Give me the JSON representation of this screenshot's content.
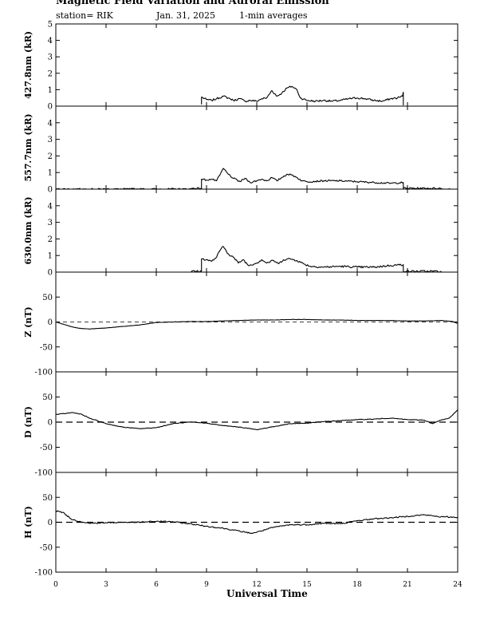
{
  "header": {
    "title": "Magnetic Field Variation and Auroral Emission",
    "station": "station= RIK",
    "date": "Jan. 31, 2025",
    "averaging": "1-min averages"
  },
  "colors": {
    "line": "#000000",
    "background": "#ffffff"
  },
  "chart_data": {
    "type": "line",
    "xlabel": "Universal Time",
    "xlim": [
      0,
      24
    ],
    "xticks": [
      0,
      3,
      6,
      9,
      12,
      15,
      18,
      21,
      24
    ],
    "xtick_labels": [
      "0",
      "3",
      "6",
      "9",
      "12",
      "15",
      "18",
      "21",
      "24"
    ],
    "panels": [
      {
        "ylabel": "427.8nm (kR)",
        "kind": "emission",
        "ylim": [
          0,
          5
        ],
        "yticks": [
          0,
          1,
          2,
          3,
          4,
          5
        ],
        "ytick_labels": [
          "0",
          "1",
          "2",
          "3",
          "4",
          "5"
        ],
        "noise": 0.06,
        "points": [
          [
            8.7,
            0.1
          ],
          [
            8.7,
            0.55
          ],
          [
            9.0,
            0.4
          ],
          [
            9.3,
            0.35
          ],
          [
            9.6,
            0.45
          ],
          [
            10.0,
            0.6
          ],
          [
            10.3,
            0.5
          ],
          [
            10.6,
            0.35
          ],
          [
            11.0,
            0.45
          ],
          [
            11.3,
            0.3
          ],
          [
            11.6,
            0.35
          ],
          [
            12.0,
            0.3
          ],
          [
            12.3,
            0.45
          ],
          [
            12.6,
            0.5
          ],
          [
            12.9,
            0.95
          ],
          [
            13.2,
            0.6
          ],
          [
            13.5,
            0.8
          ],
          [
            13.8,
            1.1
          ],
          [
            14.1,
            1.2
          ],
          [
            14.4,
            1.0
          ],
          [
            14.6,
            0.5
          ],
          [
            15.0,
            0.35
          ],
          [
            15.5,
            0.3
          ],
          [
            16.0,
            0.35
          ],
          [
            16.5,
            0.3
          ],
          [
            17.0,
            0.35
          ],
          [
            17.5,
            0.45
          ],
          [
            18.0,
            0.5
          ],
          [
            18.5,
            0.45
          ],
          [
            19.0,
            0.35
          ],
          [
            19.5,
            0.3
          ],
          [
            20.0,
            0.45
          ],
          [
            20.4,
            0.5
          ],
          [
            20.7,
            0.6
          ],
          [
            20.75,
            0.85
          ],
          [
            20.75,
            0.05
          ]
        ]
      },
      {
        "ylabel": "557.7nm (kR)",
        "kind": "emission",
        "ylim": [
          0,
          5
        ],
        "yticks": [
          0,
          1,
          2,
          3,
          4
        ],
        "ytick_labels": [
          "0",
          "1",
          "2",
          "3",
          "4"
        ],
        "noise": 0.05,
        "points": [
          [
            0.0,
            0.0
          ],
          [
            8.1,
            0.0
          ],
          [
            8.1,
            0.05
          ],
          [
            8.7,
            0.05
          ],
          [
            8.7,
            0.6
          ],
          [
            9.0,
            0.55
          ],
          [
            9.3,
            0.6
          ],
          [
            9.6,
            0.5
          ],
          [
            9.8,
            0.85
          ],
          [
            10.0,
            1.25
          ],
          [
            10.3,
            0.9
          ],
          [
            10.6,
            0.65
          ],
          [
            11.0,
            0.45
          ],
          [
            11.3,
            0.65
          ],
          [
            11.6,
            0.4
          ],
          [
            12.0,
            0.5
          ],
          [
            12.3,
            0.6
          ],
          [
            12.6,
            0.5
          ],
          [
            12.9,
            0.7
          ],
          [
            13.2,
            0.5
          ],
          [
            13.5,
            0.7
          ],
          [
            13.8,
            0.9
          ],
          [
            14.1,
            0.85
          ],
          [
            14.4,
            0.7
          ],
          [
            14.7,
            0.5
          ],
          [
            15.0,
            0.45
          ],
          [
            16.0,
            0.5
          ],
          [
            17.0,
            0.5
          ],
          [
            18.0,
            0.45
          ],
          [
            19.0,
            0.4
          ],
          [
            20.0,
            0.35
          ],
          [
            20.75,
            0.4
          ],
          [
            20.75,
            0.05
          ],
          [
            23.0,
            0.05
          ],
          [
            23.0,
            0.0
          ],
          [
            24.0,
            0.0
          ]
        ]
      },
      {
        "ylabel": "630.0nm (kR)",
        "kind": "emission",
        "ylim": [
          0,
          5
        ],
        "yticks": [
          0,
          1,
          2,
          3,
          4
        ],
        "ytick_labels": [
          "0",
          "1",
          "2",
          "3",
          "4"
        ],
        "noise": 0.06,
        "points": [
          [
            8.1,
            0.0
          ],
          [
            8.1,
            0.05
          ],
          [
            8.7,
            0.05
          ],
          [
            8.7,
            0.8
          ],
          [
            9.0,
            0.75
          ],
          [
            9.3,
            0.65
          ],
          [
            9.6,
            0.9
          ],
          [
            9.8,
            1.3
          ],
          [
            10.0,
            1.55
          ],
          [
            10.3,
            1.1
          ],
          [
            10.6,
            0.9
          ],
          [
            10.9,
            0.55
          ],
          [
            11.2,
            0.75
          ],
          [
            11.5,
            0.4
          ],
          [
            12.0,
            0.55
          ],
          [
            12.3,
            0.75
          ],
          [
            12.6,
            0.55
          ],
          [
            13.0,
            0.7
          ],
          [
            13.3,
            0.5
          ],
          [
            13.6,
            0.75
          ],
          [
            14.0,
            0.8
          ],
          [
            14.4,
            0.7
          ],
          [
            14.8,
            0.5
          ],
          [
            15.2,
            0.35
          ],
          [
            16.0,
            0.3
          ],
          [
            17.0,
            0.35
          ],
          [
            18.0,
            0.3
          ],
          [
            19.0,
            0.3
          ],
          [
            20.0,
            0.4
          ],
          [
            20.75,
            0.45
          ],
          [
            20.75,
            0.05
          ],
          [
            23.0,
            0.05
          ],
          [
            23.0,
            0.0
          ]
        ]
      },
      {
        "ylabel": "Z (nT)",
        "kind": "mag",
        "ylim": [
          -100,
          100
        ],
        "yticks": [
          -100,
          -50,
          0,
          50
        ],
        "ytick_labels": [
          "-100",
          "-50",
          "0",
          "50"
        ],
        "noise": 0.3,
        "points": [
          [
            0,
            0
          ],
          [
            0.5,
            -5
          ],
          [
            1,
            -10
          ],
          [
            1.5,
            -13
          ],
          [
            2,
            -14
          ],
          [
            3,
            -12
          ],
          [
            4,
            -9
          ],
          [
            5,
            -6
          ],
          [
            6,
            -1
          ],
          [
            7,
            0
          ],
          [
            8,
            1
          ],
          [
            9,
            1
          ],
          [
            10,
            2
          ],
          [
            11,
            3
          ],
          [
            12,
            4
          ],
          [
            13,
            4
          ],
          [
            14,
            5
          ],
          [
            15,
            5
          ],
          [
            16,
            4
          ],
          [
            17,
            4
          ],
          [
            18,
            3
          ],
          [
            19,
            3
          ],
          [
            20,
            3
          ],
          [
            21,
            2
          ],
          [
            22,
            2
          ],
          [
            23,
            3
          ],
          [
            23.7,
            1
          ],
          [
            24,
            -3
          ]
        ]
      },
      {
        "ylabel": "D (nT)",
        "kind": "mag",
        "ylim": [
          -100,
          100
        ],
        "yticks": [
          -100,
          -50,
          0,
          50
        ],
        "ytick_labels": [
          "-100",
          "-50",
          "0",
          "50"
        ],
        "noise": 0.6,
        "points": [
          [
            0,
            15
          ],
          [
            0.5,
            17
          ],
          [
            1,
            19
          ],
          [
            1.5,
            16
          ],
          [
            2,
            8
          ],
          [
            3,
            -3
          ],
          [
            4,
            -10
          ],
          [
            5,
            -13
          ],
          [
            6,
            -11
          ],
          [
            7,
            -3
          ],
          [
            8,
            0
          ],
          [
            9,
            -2
          ],
          [
            10,
            -7
          ],
          [
            11,
            -10
          ],
          [
            12,
            -15
          ],
          [
            13,
            -9
          ],
          [
            14,
            -3
          ],
          [
            15,
            -2
          ],
          [
            16,
            1
          ],
          [
            17,
            3
          ],
          [
            18,
            5
          ],
          [
            19,
            6
          ],
          [
            20,
            8
          ],
          [
            21,
            5
          ],
          [
            22,
            4
          ],
          [
            22.5,
            -3
          ],
          [
            23,
            4
          ],
          [
            23.5,
            8
          ],
          [
            23.8,
            18
          ],
          [
            24,
            25
          ]
        ]
      },
      {
        "ylabel": "H (nT)",
        "kind": "mag",
        "ylim": [
          -100,
          100
        ],
        "yticks": [
          -100,
          -50,
          0,
          50
        ],
        "ytick_labels": [
          "-100",
          "-50",
          "0",
          "50"
        ],
        "noise": 1.2,
        "points": [
          [
            0,
            23
          ],
          [
            0.4,
            20
          ],
          [
            1,
            5
          ],
          [
            2,
            -2
          ],
          [
            3,
            -1
          ],
          [
            4,
            0
          ],
          [
            5,
            0
          ],
          [
            6,
            2
          ],
          [
            7,
            1
          ],
          [
            8,
            -3
          ],
          [
            9,
            -8
          ],
          [
            10,
            -12
          ],
          [
            11,
            -18
          ],
          [
            11.7,
            -22
          ],
          [
            12,
            -20
          ],
          [
            13,
            -10
          ],
          [
            14,
            -5
          ],
          [
            15,
            -5
          ],
          [
            16,
            -2
          ],
          [
            17,
            -3
          ],
          [
            18,
            3
          ],
          [
            19,
            7
          ],
          [
            20,
            9
          ],
          [
            21,
            12
          ],
          [
            22,
            15
          ],
          [
            23,
            11
          ],
          [
            24,
            10
          ]
        ]
      }
    ]
  }
}
